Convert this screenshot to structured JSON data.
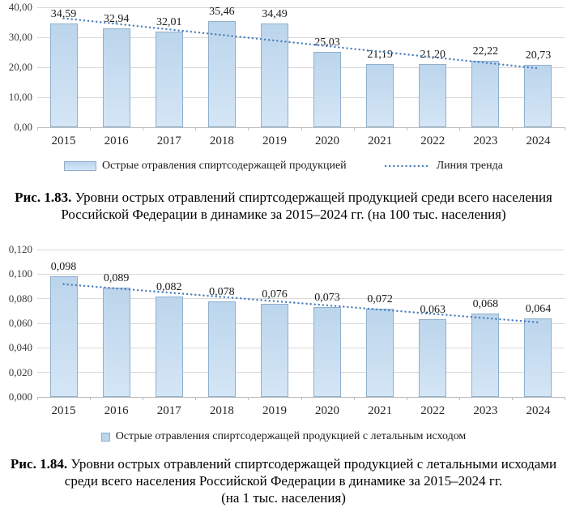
{
  "chart_data": [
    {
      "type": "bar",
      "title": "",
      "categories": [
        "2015",
        "2016",
        "2017",
        "2018",
        "2019",
        "2020",
        "2021",
        "2022",
        "2023",
        "2024"
      ],
      "series": [
        {
          "name": "Острые отравления спиртсодержащей продукцией",
          "values": [
            34.59,
            32.94,
            32.01,
            35.46,
            34.49,
            25.03,
            21.19,
            21.2,
            22.22,
            20.73
          ]
        }
      ],
      "data_labels": [
        "34,59",
        "32,94",
        "32,01",
        "35,46",
        "34,49",
        "25,03",
        "21,19",
        "21,20",
        "22,22",
        "20,73"
      ],
      "ylim": [
        0,
        40
      ],
      "ytick_step": 10,
      "ytick_labels": [
        "0,00",
        "10,00",
        "20,00",
        "30,00",
        "40,00"
      ],
      "grid": true,
      "legend_position": "bottom",
      "has_trendline": true,
      "trend_legend_label": "Линия тренда"
    },
    {
      "type": "bar",
      "title": "",
      "categories": [
        "2015",
        "2016",
        "2017",
        "2018",
        "2019",
        "2020",
        "2021",
        "2022",
        "2023",
        "2024"
      ],
      "series": [
        {
          "name": "Острые отравления спиртсодержащей продукцией с летальным исходом",
          "values": [
            0.098,
            0.089,
            0.082,
            0.078,
            0.076,
            0.073,
            0.072,
            0.063,
            0.068,
            0.064
          ]
        }
      ],
      "data_labels": [
        "0,098",
        "0,089",
        "0,082",
        "0,078",
        "0,076",
        "0,073",
        "0,072",
        "0,063",
        "0,068",
        "0,064"
      ],
      "ylim": [
        0,
        0.12
      ],
      "ytick_step": 0.02,
      "ytick_labels": [
        "0,000",
        "0,020",
        "0,040",
        "0,060",
        "0,080",
        "0,100",
        "0,120"
      ],
      "grid": true,
      "legend_position": "bottom",
      "has_trendline": true,
      "trend_legend_label": ""
    }
  ],
  "captions": {
    "fig1": {
      "prefix": "Рис. 1.83.",
      "line1": "Уровни острых отравлений спиртсодержащей продукцией среди всего населения",
      "line2": "Российской Федерации в динамике за 2015–2024 гг. (на 100 тыс. населения)"
    },
    "fig2": {
      "prefix": "Рис. 1.84.",
      "line1": "Уровни острых отравлений спиртсодержащей продукцией с летальными исходами",
      "line2": "среди всего населения Российской Федерации в динамике за 2015–2024 гг.",
      "line3": "(на 1 тыс. населения)"
    }
  },
  "colors": {
    "bar_fill": "#C9DEF1",
    "bar_border": "#8FAFCC",
    "trend": "#4A7EBB",
    "gridline": "#D9D9D9",
    "axis": "#BFBFBF",
    "text": "#1A1A1A"
  }
}
